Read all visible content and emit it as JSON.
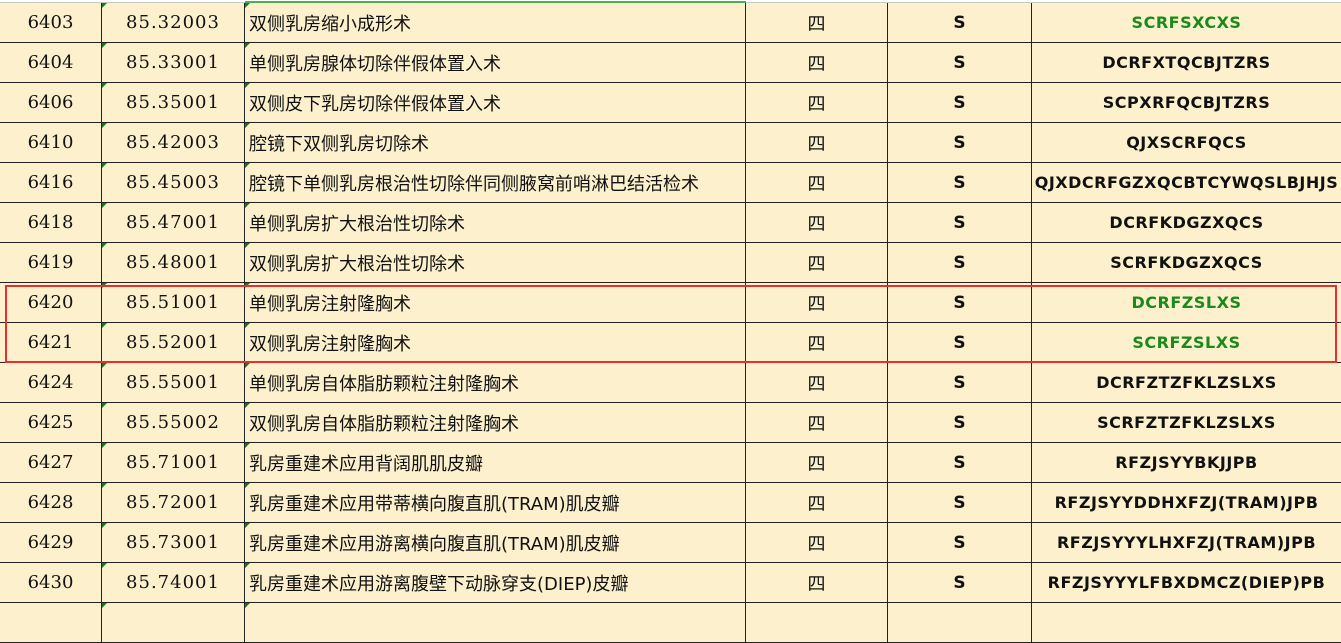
{
  "colors": {
    "green_text": "#1a8a1a",
    "highlight": "#e53030",
    "cell_bg": "#fdf1cd"
  },
  "rows": [
    {
      "id": "6403",
      "code": "85.32003",
      "name": "双侧乳房缩小成形术",
      "level": "四",
      "type": "S",
      "abbr": "SCRFSXCXS",
      "green": true
    },
    {
      "id": "6404",
      "code": "85.33001",
      "name": "单侧乳房腺体切除伴假体置入术",
      "level": "四",
      "type": "S",
      "abbr": "DCRFXTQCBJTZRS",
      "green": false
    },
    {
      "id": "6406",
      "code": "85.35001",
      "name": "双侧皮下乳房切除伴假体置入术",
      "level": "四",
      "type": "S",
      "abbr": "SCPXRFQCBJTZRS",
      "green": false
    },
    {
      "id": "6410",
      "code": "85.42003",
      "name": "腔镜下双侧乳房切除术",
      "level": "四",
      "type": "S",
      "abbr": "QJXSCRFQCS",
      "green": false
    },
    {
      "id": "6416",
      "code": "85.45003",
      "name": "腔镜下单侧乳房根治性切除伴同侧腋窝前哨淋巴结活检术",
      "level": "四",
      "type": "S",
      "abbr": "QJXDCRFGZXQCBTCYWQSLBJHJS",
      "green": false
    },
    {
      "id": "6418",
      "code": "85.47001",
      "name": "单侧乳房扩大根治性切除术",
      "level": "四",
      "type": "S",
      "abbr": "DCRFKDGZXQCS",
      "green": false
    },
    {
      "id": "6419",
      "code": "85.48001",
      "name": "双侧乳房扩大根治性切除术",
      "level": "四",
      "type": "S",
      "abbr": "SCRFKDGZXQCS",
      "green": false
    },
    {
      "id": "6420",
      "code": "85.51001",
      "name": "单侧乳房注射隆胸术",
      "level": "四",
      "type": "S",
      "abbr": "DCRFZSLXS",
      "green": true
    },
    {
      "id": "6421",
      "code": "85.52001",
      "name": "双侧乳房注射隆胸术",
      "level": "四",
      "type": "S",
      "abbr": "SCRFZSLXS",
      "green": true
    },
    {
      "id": "6424",
      "code": "85.55001",
      "name": "单侧乳房自体脂肪颗粒注射隆胸术",
      "level": "四",
      "type": "S",
      "abbr": "DCRFZTZFKLZSLXS",
      "green": false
    },
    {
      "id": "6425",
      "code": "85.55002",
      "name": "双侧乳房自体脂肪颗粒注射隆胸术",
      "level": "四",
      "type": "S",
      "abbr": "SCRFZTZFKLZSLXS",
      "green": false
    },
    {
      "id": "6427",
      "code": "85.71001",
      "name": "乳房重建术应用背阔肌肌皮瓣",
      "level": "四",
      "type": "S",
      "abbr": "RFZJSYYBKJJPB",
      "green": false
    },
    {
      "id": "6428",
      "code": "85.72001",
      "name": "乳房重建术应用带蒂横向腹直肌(TRAM)肌皮瓣",
      "level": "四",
      "type": "S",
      "abbr": "RFZJSYYDDHXFZJ(TRAM)JPB",
      "green": false
    },
    {
      "id": "6429",
      "code": "85.73001",
      "name": "乳房重建术应用游离横向腹直肌(TRAM)肌皮瓣",
      "level": "四",
      "type": "S",
      "abbr": "RFZJSYYYLHXFZJ(TRAM)JPB",
      "green": false
    },
    {
      "id": "6430",
      "code": "85.74001",
      "name": "乳房重建术应用游离腹壁下动脉穿支(DIEP)皮瓣",
      "level": "四",
      "type": "S",
      "abbr": "RFZJSYYYLFBXDMCZ(DⅠEP)PB",
      "green": false
    },
    {
      "id": "",
      "code": "",
      "name": "",
      "level": "",
      "type": "",
      "abbr": "",
      "green": false
    }
  ]
}
